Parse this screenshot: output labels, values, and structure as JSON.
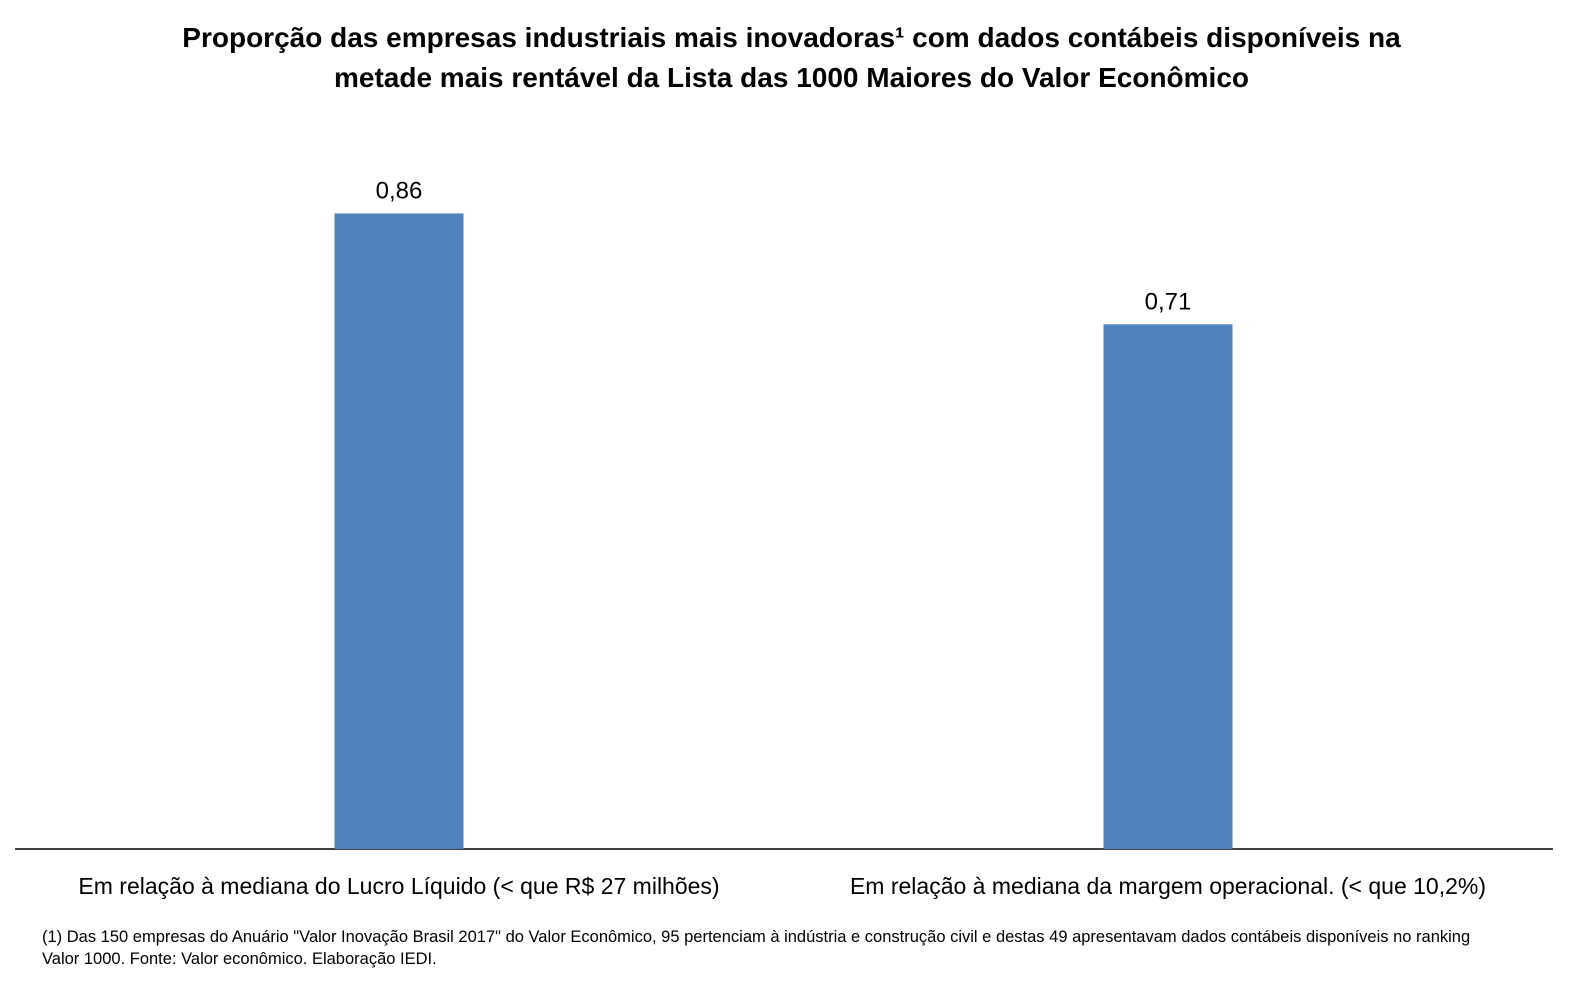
{
  "chart_data": {
    "type": "bar",
    "title_lines": [
      "Proporção das empresas industriais mais inovadoras¹ com dados contábeis disponíveis na",
      "metade mais rentável da Lista das 1000 Maiores do Valor Econômico"
    ],
    "categories": [
      "Em relação à mediana do Lucro Líquido (< que R$ 27 milhões)",
      "Em relação à mediana da margem operacional. (< que 10,2%)"
    ],
    "values": [
      0.86,
      0.71
    ],
    "data_labels": [
      "0,86",
      "0,71"
    ],
    "ylim": [
      0,
      1
    ],
    "bar_color": "#4F81BD",
    "grid": false,
    "legend": "none"
  },
  "footnote_lines": [
    "(1) Das 150 empresas do Anuário \"Valor Inovação Brasil 2017\" do Valor Econômico, 95 pertenciam à indústria e construção civil e destas 49 apresentavam dados contábeis disponíveis no ranking",
    "Valor 1000. Fonte: Valor econômico. Elaboração IEDI."
  ]
}
